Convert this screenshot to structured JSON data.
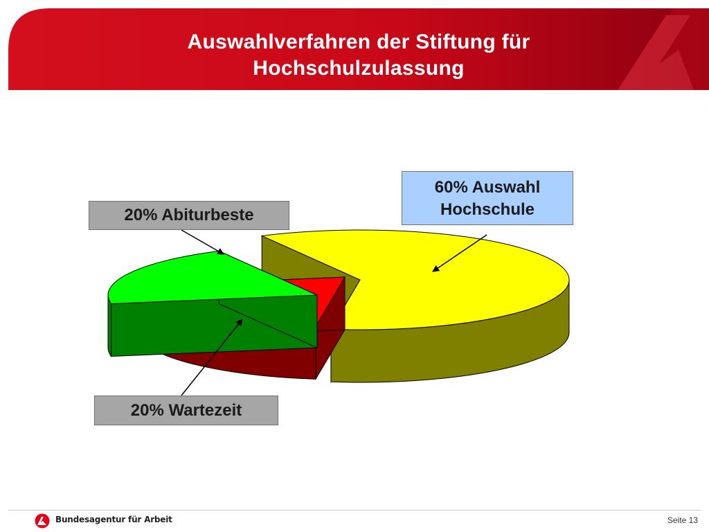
{
  "slide": {
    "title_line1": "Auswahlverfahren der Stiftung für",
    "title_line2": "Hochschulzulassung",
    "page_label": "Seite 13",
    "organization": "Bundesagentur für Arbeit",
    "logo_icon": "ba-logo-icon"
  },
  "colors": {
    "header_red": "#d40f1d",
    "header_dark": "#8c0010",
    "yellow": "#ffff00",
    "yellow_side": "#808000",
    "red": "#ff0000",
    "red_side": "#800000",
    "green": "#00ff00",
    "green_side": "#008000",
    "callout_gray": "#a6a6a6",
    "callout_blue": "#a9d0ff"
  },
  "chart_data": {
    "type": "pie",
    "style": "3d-exploded",
    "slices": [
      {
        "label": "Auswahl Hochschule",
        "value": 60,
        "color": "#ffff00",
        "side_color": "#808000"
      },
      {
        "label": "Abiturbeste",
        "value": 20,
        "color": "#ff0000",
        "side_color": "#800000"
      },
      {
        "label": "Wartezeit",
        "value": 20,
        "color": "#00ff00",
        "side_color": "#008000"
      }
    ],
    "callouts": {
      "abiturbeste": "20% Abiturbeste",
      "wartezeit": "20% Wartezeit",
      "auswahl_line1": "60% Auswahl",
      "auswahl_line2": "Hochschule"
    }
  }
}
